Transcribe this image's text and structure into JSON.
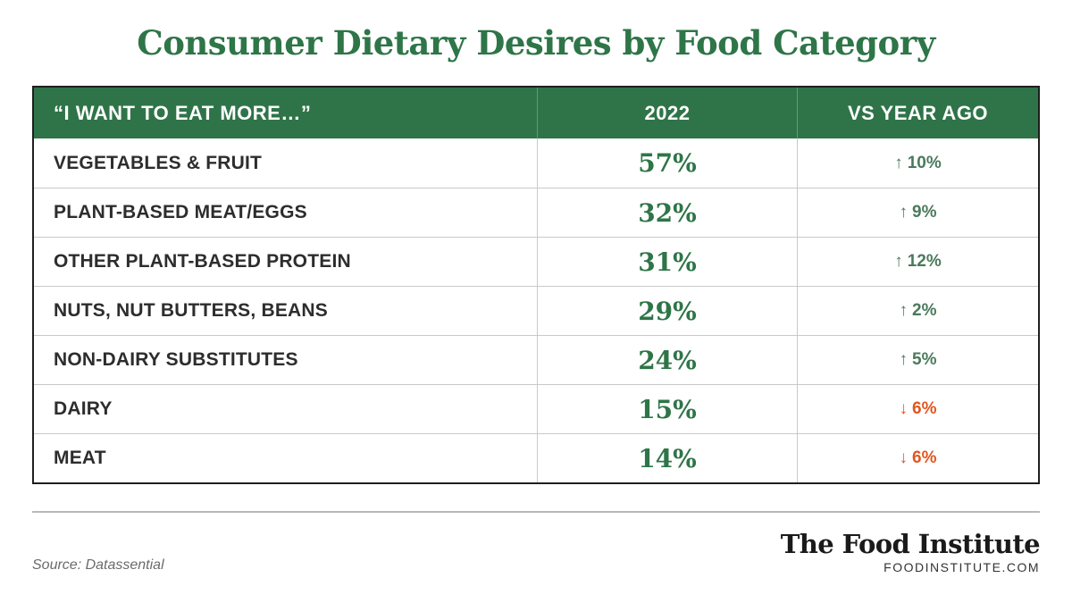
{
  "title": "Consumer Dietary Desires by Food Category",
  "colors": {
    "accent": "#2f7448",
    "up": "#4a7a5c",
    "down": "#e2561f"
  },
  "chart_data": {
    "type": "table",
    "columns": [
      "“I WANT TO EAT MORE…”",
      "2022",
      "VS YEAR AGO"
    ],
    "rows": [
      {
        "category": "VEGETABLES & FRUIT",
        "value": "57%",
        "change": "10%",
        "direction": "up"
      },
      {
        "category": "PLANT-BASED MEAT/EGGS",
        "value": "32%",
        "change": "9%",
        "direction": "up"
      },
      {
        "category": "OTHER PLANT-BASED PROTEIN",
        "value": "31%",
        "change": "12%",
        "direction": "up"
      },
      {
        "category": "NUTS, NUT BUTTERS, BEANS",
        "value": "29%",
        "change": "2%",
        "direction": "up"
      },
      {
        "category": "NON-DAIRY SUBSTITUTES",
        "value": "24%",
        "change": "5%",
        "direction": "up"
      },
      {
        "category": "DAIRY",
        "value": "15%",
        "change": "6%",
        "direction": "down"
      },
      {
        "category": "MEAT",
        "value": "14%",
        "change": "6%",
        "direction": "down"
      }
    ]
  },
  "footer": {
    "source": "Source: Datassential",
    "brand_name": "The Food Institute",
    "brand_url": "FOODINSTITUTE.COM"
  }
}
